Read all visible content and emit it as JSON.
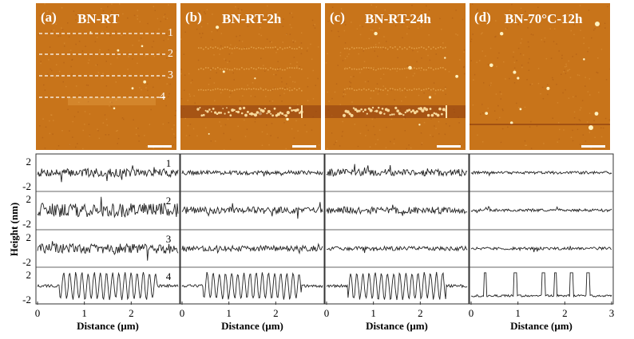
{
  "colors": {
    "afm_background": "#c8741a",
    "afm_dark": "#8a3a10",
    "afm_light": "#f2b860",
    "trace": "#222222",
    "frame": "#333333",
    "annotation": "#ffffff"
  },
  "panels": [
    {
      "label": "(a)",
      "title": "BN-RT",
      "line_numbers": [
        "1",
        "2",
        "3",
        "4"
      ]
    },
    {
      "label": "(b)",
      "title": "BN-RT-2h",
      "line_numbers": []
    },
    {
      "label": "(c)",
      "title": "BN-RT-24h",
      "line_numbers": []
    },
    {
      "label": "(d)",
      "title": "BN-70°C-12h",
      "line_numbers": []
    }
  ],
  "profiles": {
    "ylabel": "Height (nm)",
    "xlabel": "Distance (μm)",
    "ytick_labels": [
      "2",
      "-2"
    ],
    "xtick_labels": [
      "0",
      "1",
      "2"
    ],
    "xtick_labels_last": [
      "0",
      "1",
      "2",
      "3"
    ],
    "row_numbers": [
      "1",
      "2",
      "3",
      "4"
    ]
  },
  "chart_data": {
    "type": "line",
    "xlabel": "Distance (μm)",
    "ylabel": "Height (nm)",
    "xlim": [
      0,
      3
    ],
    "ylim": [
      -2,
      2
    ],
    "columns": [
      "(a) BN-RT",
      "(b) BN-RT-2h",
      "(c) BN-RT-24h",
      "(d) BN-70°C-12h"
    ],
    "rows": [
      "1",
      "2",
      "3",
      "4"
    ],
    "series": [
      {
        "name": "1",
        "panel": "(a)",
        "amplitude": 0.6
      },
      {
        "name": "2",
        "panel": "(a)",
        "amplitude": 1.0
      },
      {
        "name": "3",
        "panel": "(a)",
        "amplitude": 0.7
      },
      {
        "name": "4",
        "panel": "(a)",
        "amplitude": 2.2
      },
      {
        "name": "1",
        "panel": "(b)",
        "amplitude": 0.3
      },
      {
        "name": "2",
        "panel": "(b)",
        "amplitude": 0.5
      },
      {
        "name": "3",
        "panel": "(b)",
        "amplitude": 0.4
      },
      {
        "name": "4",
        "panel": "(b)",
        "amplitude": 2.2
      },
      {
        "name": "1",
        "panel": "(c)",
        "amplitude": 0.5
      },
      {
        "name": "2",
        "panel": "(c)",
        "amplitude": 0.5
      },
      {
        "name": "3",
        "panel": "(c)",
        "amplitude": 0.3
      },
      {
        "name": "4",
        "panel": "(c)",
        "amplitude": 2.2
      },
      {
        "name": "1",
        "panel": "(d)",
        "amplitude": 0.2
      },
      {
        "name": "2",
        "panel": "(d)",
        "amplitude": 0.2
      },
      {
        "name": "3",
        "panel": "(d)",
        "amplitude": 0.2
      },
      {
        "name": "4",
        "panel": "(d)",
        "amplitude": 2.0
      }
    ]
  }
}
